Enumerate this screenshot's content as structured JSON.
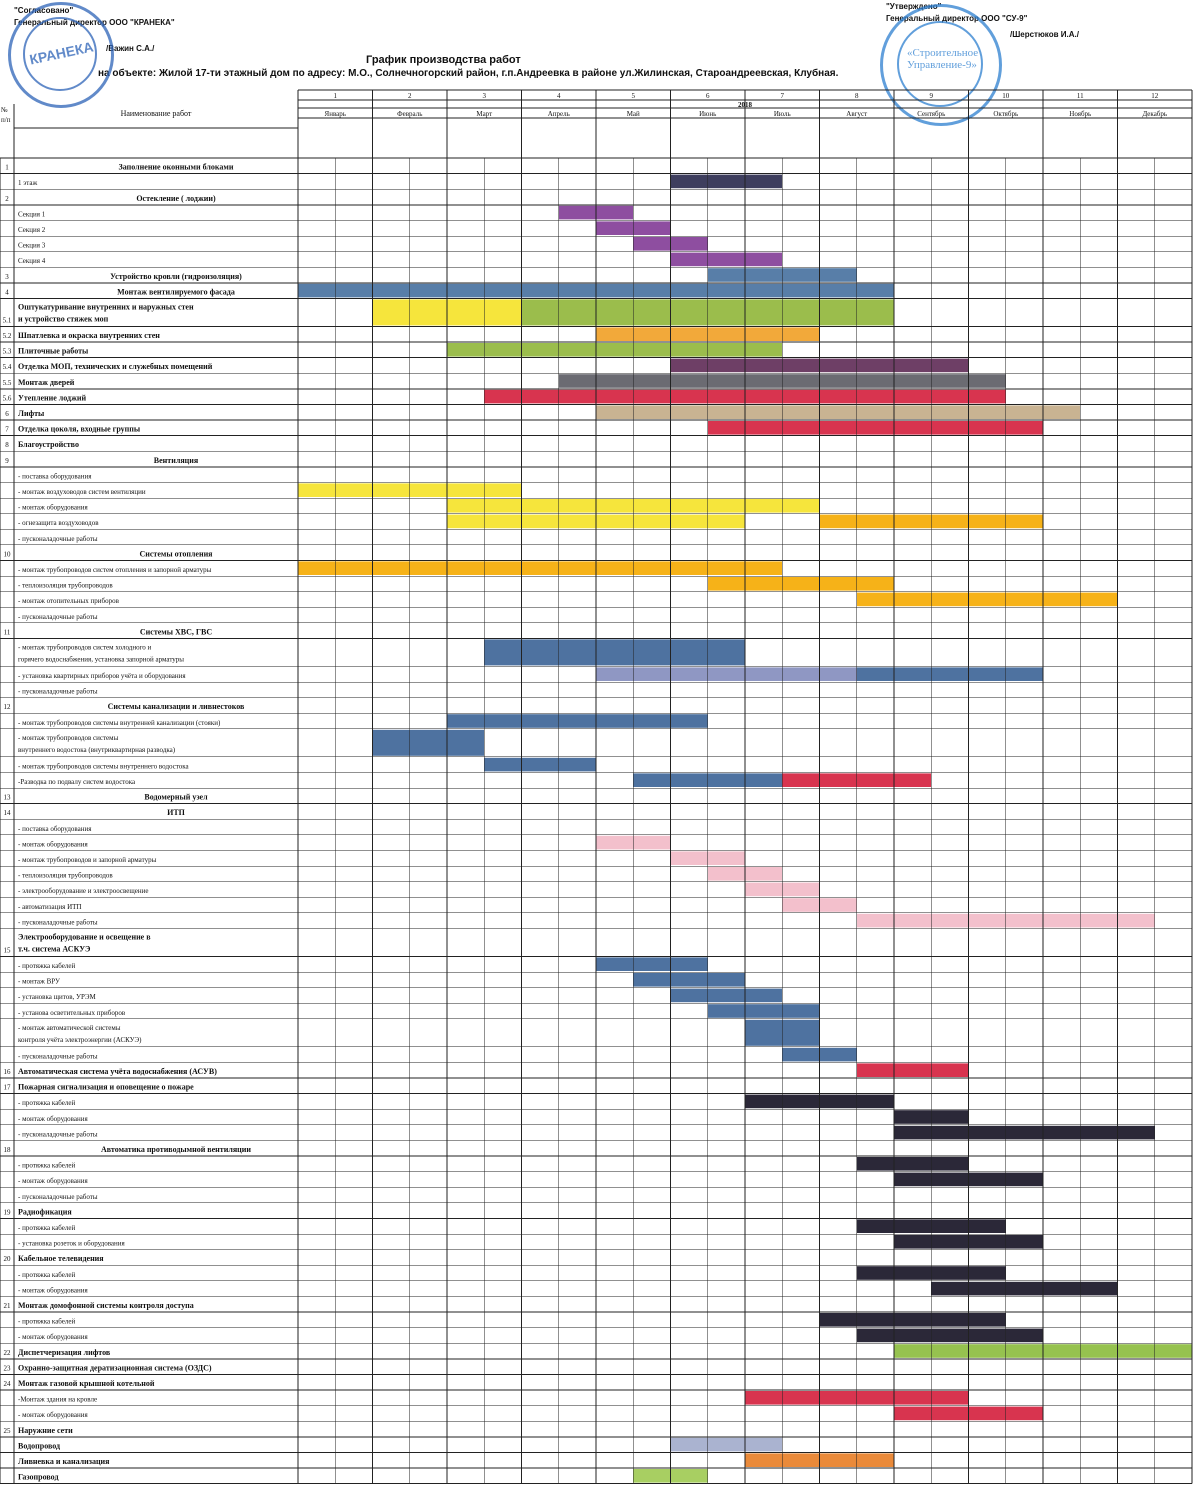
{
  "header": {
    "agreed": "\"Согласовано\"",
    "agreed_role": "Генеральный директор ООО \"КРАНЕКА\"",
    "agreed_sign": "/Важин С.А./",
    "approved": "\"Утверждено\"",
    "approved_role": "Генеральный директор ООО \"СУ-9\"",
    "approved_sign": "/Шерстюков И.А./",
    "title": "График производства работ",
    "subtitle": "на объекте: Жилой 17-ти этажный дом по адресу: М.О., Солнечногорский район, г.п.Андреевка в районе ул.Жилинская, Староандреевская, Клубная.",
    "stamp_left_text": "КРАНЕКА",
    "stamp_right_text": "«Строительное Управление-9»"
  },
  "table": {
    "col_no": "№ п/п",
    "col_name": "Наименование работ",
    "year": "2018",
    "month_numbers": [
      "1",
      "2",
      "3",
      "4",
      "5",
      "6",
      "7",
      "8",
      "9",
      "10",
      "11",
      "12"
    ],
    "months": [
      "Январь",
      "Февраль",
      "Март",
      "Апрель",
      "Май",
      "Июнь",
      "Июль",
      "Август",
      "Сентябрь",
      "Октябрь",
      "Ноябрь",
      "Декабрь"
    ]
  },
  "colors": {
    "navy": "#3e3e5e",
    "purple": "#8e4ea0",
    "steel": "#587ea8",
    "yellow": "#f6e53c",
    "olive": "#9bbd4c",
    "orange": "#f2a93a",
    "maroon": "#6e3f66",
    "grey": "#6b6b72",
    "red": "#d8344f",
    "tan": "#c9b392",
    "amber": "#f6b218",
    "blue": "#4e72a0",
    "lavender": "#8f97c3",
    "pink": "#f3c0cc",
    "dark": "#2b2838",
    "green": "#96c24f",
    "orange2": "#ea8a3a",
    "lightblue": "#aab3d0",
    "lightgreen": "#a8cf62"
  },
  "rows": [
    {
      "no": "1",
      "name": "Заполнение оконными блоками",
      "bold": true,
      "center": true,
      "bars": []
    },
    {
      "no": "",
      "name": "1 этаж",
      "bars": [
        {
          "c": "navy",
          "s": 10,
          "e": 13
        }
      ]
    },
    {
      "no": "2",
      "name": "Остекление ( лоджии)",
      "bold": true,
      "center": true,
      "bars": []
    },
    {
      "no": "",
      "name": "Секция 1",
      "bars": [
        {
          "c": "purple",
          "s": 7,
          "e": 9
        }
      ]
    },
    {
      "no": "",
      "name": "Секция 2",
      "bars": [
        {
          "c": "purple",
          "s": 8,
          "e": 10
        }
      ]
    },
    {
      "no": "",
      "name": "Секция 3",
      "bars": [
        {
          "c": "purple",
          "s": 9,
          "e": 11
        }
      ]
    },
    {
      "no": "",
      "name": "Секция 4",
      "bars": [
        {
          "c": "purple",
          "s": 10,
          "e": 13
        }
      ]
    },
    {
      "no": "3",
      "name": "Устройство кровли (гидроизоляция)",
      "bold": true,
      "center": true,
      "bars": [
        {
          "c": "steel",
          "s": 11,
          "e": 15
        }
      ]
    },
    {
      "no": "4",
      "name": "Монтаж вентилируемого фасада",
      "bold": true,
      "center": true,
      "bars": [
        {
          "c": "steel",
          "s": 0,
          "e": 16
        }
      ]
    },
    {
      "no": "5.1",
      "name": "Оштукатуривание внутренних и наружных стен и устройство стяжек моп",
      "bold": true,
      "tall": true,
      "bars": [
        {
          "c": "yellow",
          "s": 2,
          "e": 9
        },
        {
          "c": "olive",
          "s": 6,
          "e": 16
        }
      ]
    },
    {
      "no": "5.2",
      "name": "Шпатлевка и окраска внутренних стен",
      "bold": true,
      "bars": [
        {
          "c": "orange",
          "s": 8,
          "e": 14
        }
      ]
    },
    {
      "no": "5.3",
      "name": "Плиточные работы",
      "bold": true,
      "bars": [
        {
          "c": "olive",
          "s": 4,
          "e": 13
        }
      ]
    },
    {
      "no": "5.4",
      "name": "Отделка МОП, технических и служебных помещений",
      "bold": true,
      "bars": [
        {
          "c": "maroon",
          "s": 10,
          "e": 18
        }
      ]
    },
    {
      "no": "5.5",
      "name": "Монтаж дверей",
      "bold": true,
      "bars": [
        {
          "c": "grey",
          "s": 7,
          "e": 19
        }
      ]
    },
    {
      "no": "5.6",
      "name": "Утепление лоджий",
      "bold": true,
      "bars": [
        {
          "c": "red",
          "s": 5,
          "e": 19
        }
      ]
    },
    {
      "no": "6",
      "name": "Лифты",
      "bold": true,
      "bars": [
        {
          "c": "tan",
          "s": 8,
          "e": 21
        }
      ]
    },
    {
      "no": "7",
      "name": "Отделка цоколя, входные группы",
      "bold": true,
      "bars": [
        {
          "c": "red",
          "s": 11,
          "e": 20
        }
      ]
    },
    {
      "no": "8",
      "name": "Благоустройство",
      "bold": true,
      "bars": []
    },
    {
      "no": "9",
      "name": "Вентиляция",
      "bold": true,
      "center": true,
      "bars": []
    },
    {
      "no": "",
      "name": "- поставка оборудования",
      "bars": []
    },
    {
      "no": "",
      "name": "- монтаж воздуховодов систем вентиляции",
      "bars": [
        {
          "c": "yellow",
          "s": 0,
          "e": 6
        }
      ]
    },
    {
      "no": "",
      "name": "- монтаж оборудования",
      "bars": [
        {
          "c": "yellow",
          "s": 4,
          "e": 14
        }
      ]
    },
    {
      "no": "",
      "name": "- огнезащита воздуховодов",
      "bars": [
        {
          "c": "yellow",
          "s": 4,
          "e": 12
        },
        {
          "c": "amber",
          "s": 14,
          "e": 20
        }
      ]
    },
    {
      "no": "",
      "name": "- пусконаладочные работы",
      "bars": []
    },
    {
      "no": "10",
      "name": "Системы отопления",
      "bold": true,
      "center": true,
      "bars": []
    },
    {
      "no": "",
      "name": "- монтаж трубопроводов систем отопления и запорной арматуры",
      "bars": [
        {
          "c": "amber",
          "s": 0,
          "e": 13
        }
      ]
    },
    {
      "no": "",
      "name": "- теплоизоляция трубопроводов",
      "bars": [
        {
          "c": "amber",
          "s": 11,
          "e": 16
        }
      ]
    },
    {
      "no": "",
      "name": "- монтаж отопительных приборов",
      "bars": [
        {
          "c": "amber",
          "s": 15,
          "e": 22
        }
      ]
    },
    {
      "no": "",
      "name": "- пусконаладочные работы",
      "bars": []
    },
    {
      "no": "11",
      "name": "Системы ХВС, ГВС",
      "bold": true,
      "center": true,
      "bars": []
    },
    {
      "no": "",
      "name": "- монтаж трубопроводов систем холодного и горячего водоснабжения, установка запорной арматуры",
      "tall": true,
      "bars": [
        {
          "c": "blue",
          "s": 5,
          "e": 12
        }
      ]
    },
    {
      "no": "",
      "name": "- установка квартирных приборов учёта и оборудования",
      "bars": [
        {
          "c": "lavender",
          "s": 8,
          "e": 15
        },
        {
          "c": "blue",
          "s": 15,
          "e": 20
        }
      ]
    },
    {
      "no": "",
      "name": "- пусконаладочные работы",
      "bars": []
    },
    {
      "no": "12",
      "name": "Системы канализации и ливнестоков",
      "bold": true,
      "center": true,
      "bars": []
    },
    {
      "no": "",
      "name": "- монтаж трубопроводов системы внутренней канализации (стояки)",
      "bars": [
        {
          "c": "blue",
          "s": 4,
          "e": 11
        }
      ]
    },
    {
      "no": "",
      "name": "- монтаж трубопроводов системы внутреннего водостока (внутриквартирная разводка)",
      "tall": true,
      "bars": [
        {
          "c": "blue",
          "s": 2,
          "e": 5
        }
      ]
    },
    {
      "no": "",
      "name": "- монтаж трубопроводов системы внутреннего водостока",
      "bars": [
        {
          "c": "blue",
          "s": 5,
          "e": 8
        }
      ]
    },
    {
      "no": "",
      "name": "-Разводка по подвалу систем водостока",
      "bars": [
        {
          "c": "blue",
          "s": 9,
          "e": 14
        },
        {
          "c": "red",
          "s": 13,
          "e": 17
        }
      ]
    },
    {
      "no": "13",
      "name": "Водомерный узел",
      "bold": true,
      "center": true,
      "bars": []
    },
    {
      "no": "14",
      "name": "ИТП",
      "bold": true,
      "center": true,
      "bars": []
    },
    {
      "no": "",
      "name": "- поставка оборудования",
      "bars": []
    },
    {
      "no": "",
      "name": "- монтаж оборудования",
      "bars": [
        {
          "c": "pink",
          "s": 8,
          "e": 10
        }
      ]
    },
    {
      "no": "",
      "name": "- монтаж трубопроводов и запорной арматуры",
      "bars": [
        {
          "c": "pink",
          "s": 10,
          "e": 12
        }
      ]
    },
    {
      "no": "",
      "name": "- теплоизоляция трубопроводов",
      "bars": [
        {
          "c": "pink",
          "s": 11,
          "e": 13
        }
      ]
    },
    {
      "no": "",
      "name": "- электрооборудование и электроосвещение",
      "bars": [
        {
          "c": "pink",
          "s": 12,
          "e": 14
        }
      ]
    },
    {
      "no": "",
      "name": "- автоматизация ИТП",
      "bars": [
        {
          "c": "pink",
          "s": 13,
          "e": 15
        }
      ]
    },
    {
      "no": "",
      "name": "- пусконаладочные работы",
      "bars": [
        {
          "c": "pink",
          "s": 15,
          "e": 23
        }
      ]
    },
    {
      "no": "15",
      "name": "Электрооборудование и освещение в т.ч. система АСКУЭ",
      "bold": true,
      "tall": true,
      "bars": []
    },
    {
      "no": "",
      "name": "- протяжка кабелей",
      "bars": [
        {
          "c": "blue",
          "s": 8,
          "e": 11
        }
      ]
    },
    {
      "no": "",
      "name": "- монтаж ВРУ",
      "bars": [
        {
          "c": "blue",
          "s": 9,
          "e": 12
        }
      ]
    },
    {
      "no": "",
      "name": "- установка щитов, УРЭМ",
      "bars": [
        {
          "c": "blue",
          "s": 10,
          "e": 13
        }
      ]
    },
    {
      "no": "",
      "name": "- установа осветительных приборов",
      "bars": [
        {
          "c": "blue",
          "s": 11,
          "e": 14
        }
      ]
    },
    {
      "no": "",
      "name": "- монтаж автоматической системы контроля учёта электроэнергии (АСКУЭ)",
      "tall": true,
      "bars": [
        {
          "c": "blue",
          "s": 12,
          "e": 14
        }
      ]
    },
    {
      "no": "",
      "name": "- пусконаладочные работы",
      "bars": [
        {
          "c": "blue",
          "s": 13,
          "e": 15
        }
      ]
    },
    {
      "no": "16",
      "name": "Автоматическая система учёта водоснабжения (АСУВ)",
      "bold": true,
      "bars": [
        {
          "c": "red",
          "s": 15,
          "e": 18
        }
      ]
    },
    {
      "no": "17",
      "name": "Пожарная сигнализация и оповещение о пожаре",
      "bold": true,
      "bars": []
    },
    {
      "no": "",
      "name": "- протяжка кабелей",
      "bars": [
        {
          "c": "dark",
          "s": 12,
          "e": 16
        }
      ]
    },
    {
      "no": "",
      "name": "- монтаж оборудования",
      "bars": [
        {
          "c": "dark",
          "s": 16,
          "e": 18
        }
      ]
    },
    {
      "no": "",
      "name": "- пусконаладочные работы",
      "bars": [
        {
          "c": "dark",
          "s": 16,
          "e": 23
        }
      ]
    },
    {
      "no": "18",
      "name": "Автоматика противодымной вентиляции",
      "bold": true,
      "center": true,
      "bars": []
    },
    {
      "no": "",
      "name": "- протяжка кабелей",
      "bars": [
        {
          "c": "dark",
          "s": 15,
          "e": 18
        }
      ]
    },
    {
      "no": "",
      "name": "- монтаж оборудования",
      "bars": [
        {
          "c": "dark",
          "s": 16,
          "e": 20
        }
      ]
    },
    {
      "no": "",
      "name": "- пусконаладочные работы",
      "bars": []
    },
    {
      "no": "19",
      "name": "Радиофикация",
      "bold": true,
      "bars": []
    },
    {
      "no": "",
      "name": "- протяжка кабелей",
      "bars": [
        {
          "c": "dark",
          "s": 15,
          "e": 19
        }
      ]
    },
    {
      "no": "",
      "name": "- установка розеток и оборудования",
      "bars": [
        {
          "c": "dark",
          "s": 16,
          "e": 20
        }
      ]
    },
    {
      "no": "20",
      "name": "Кабельное телевидения",
      "bold": true,
      "bars": []
    },
    {
      "no": "",
      "name": "- протяжка кабелей",
      "bars": [
        {
          "c": "dark",
          "s": 15,
          "e": 19
        }
      ]
    },
    {
      "no": "",
      "name": "- монтаж оборудования",
      "bars": [
        {
          "c": "dark",
          "s": 17,
          "e": 22
        }
      ]
    },
    {
      "no": "21",
      "name": "Монтаж домофонной системы контроля доступа",
      "bold": true,
      "bars": []
    },
    {
      "no": "",
      "name": "- протяжка кабелей",
      "bars": [
        {
          "c": "dark",
          "s": 14,
          "e": 19
        }
      ]
    },
    {
      "no": "",
      "name": "- монтаж оборудования",
      "bars": [
        {
          "c": "dark",
          "s": 15,
          "e": 20
        }
      ]
    },
    {
      "no": "22",
      "name": "Диспетчеризация лифтов",
      "bold": true,
      "bars": [
        {
          "c": "green",
          "s": 16,
          "e": 24
        }
      ]
    },
    {
      "no": "23",
      "name": "Охранно-защитная дератизационная система (ОЗДС)",
      "bold": true,
      "bars": []
    },
    {
      "no": "24",
      "name": "Монтаж газовой крышной котельной",
      "bold": true,
      "bars": []
    },
    {
      "no": "",
      "name": "-Монтаж здания на кровле",
      "bars": [
        {
          "c": "red",
          "s": 12,
          "e": 18
        }
      ]
    },
    {
      "no": "",
      "name": "- монтаж оборудования",
      "bars": [
        {
          "c": "red",
          "s": 16,
          "e": 20
        }
      ]
    },
    {
      "no": "25",
      "name": "Наружние сети",
      "bold": true,
      "bars": []
    },
    {
      "no": "",
      "name": "Водопровод",
      "bold": true,
      "bars": [
        {
          "c": "lightblue",
          "s": 10,
          "e": 13
        }
      ]
    },
    {
      "no": "",
      "name": "Ливневка и канализация",
      "bold": true,
      "bars": [
        {
          "c": "orange2",
          "s": 12,
          "e": 16
        }
      ]
    },
    {
      "no": "",
      "name": "Газопровод",
      "bold": true,
      "bars": [
        {
          "c": "lightgreen",
          "s": 9,
          "e": 11
        }
      ]
    }
  ]
}
